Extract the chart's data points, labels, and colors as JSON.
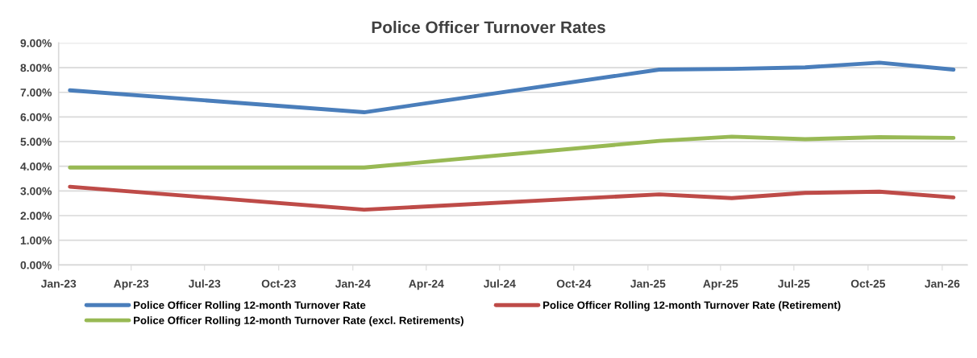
{
  "chart_data": {
    "type": "line",
    "title": "Police Officer Turnover Rates",
    "x": [
      "2023-01-15",
      "2024-01-15",
      "2025-01-15",
      "2025-04-15",
      "2025-07-15",
      "2025-10-15",
      "2026-01-15"
    ],
    "series": [
      {
        "name": "Police Officer Rolling 12-month Turnover Rate",
        "color": "#4a7ebb",
        "values": [
          7.08,
          6.19,
          7.92,
          7.95,
          8.01,
          8.2,
          7.92
        ]
      },
      {
        "name": "Police Officer Rolling 12-month Turnover Rate (Retirement)",
        "color": "#be4b48",
        "values": [
          3.17,
          2.24,
          2.86,
          2.71,
          2.92,
          2.97,
          2.74
        ]
      },
      {
        "name": "Police Officer Rolling 12-month Turnover Rate (excl. Retirements)",
        "color": "#98b954",
        "values": [
          3.95,
          3.95,
          5.03,
          5.2,
          5.1,
          5.18,
          5.15
        ]
      }
    ],
    "xlim": [
      "2023-01-01",
      "2026-02-01"
    ],
    "xticks": [
      {
        "value": "2023-01-01",
        "label": "Jan-23"
      },
      {
        "value": "2023-04-01",
        "label": "Apr-23"
      },
      {
        "value": "2023-07-01",
        "label": "Jul-23"
      },
      {
        "value": "2023-10-01",
        "label": "Oct-23"
      },
      {
        "value": "2024-01-01",
        "label": "Jan-24"
      },
      {
        "value": "2024-04-01",
        "label": "Apr-24"
      },
      {
        "value": "2024-07-01",
        "label": "Jul-24"
      },
      {
        "value": "2024-10-01",
        "label": "Oct-24"
      },
      {
        "value": "2025-01-01",
        "label": "Jan-25"
      },
      {
        "value": "2025-04-01",
        "label": "Apr-25"
      },
      {
        "value": "2025-07-01",
        "label": "Jul-25"
      },
      {
        "value": "2025-10-01",
        "label": "Oct-25"
      },
      {
        "value": "2026-01-01",
        "label": "Jan-26"
      }
    ],
    "ylim": [
      0,
      9
    ],
    "yticks": [
      {
        "value": 0,
        "label": "0.00%"
      },
      {
        "value": 1,
        "label": "1.00%"
      },
      {
        "value": 2,
        "label": "2.00%"
      },
      {
        "value": 3,
        "label": "3.00%"
      },
      {
        "value": 4,
        "label": "4.00%"
      },
      {
        "value": 5,
        "label": "5.00%"
      },
      {
        "value": 6,
        "label": "6.00%"
      },
      {
        "value": 7,
        "label": "7.00%"
      },
      {
        "value": 8,
        "label": "8.00%"
      },
      {
        "value": 9,
        "label": "9.00%"
      }
    ],
    "grid": "y",
    "legend": "bottom",
    "marker": "none",
    "line_style": "solid"
  }
}
